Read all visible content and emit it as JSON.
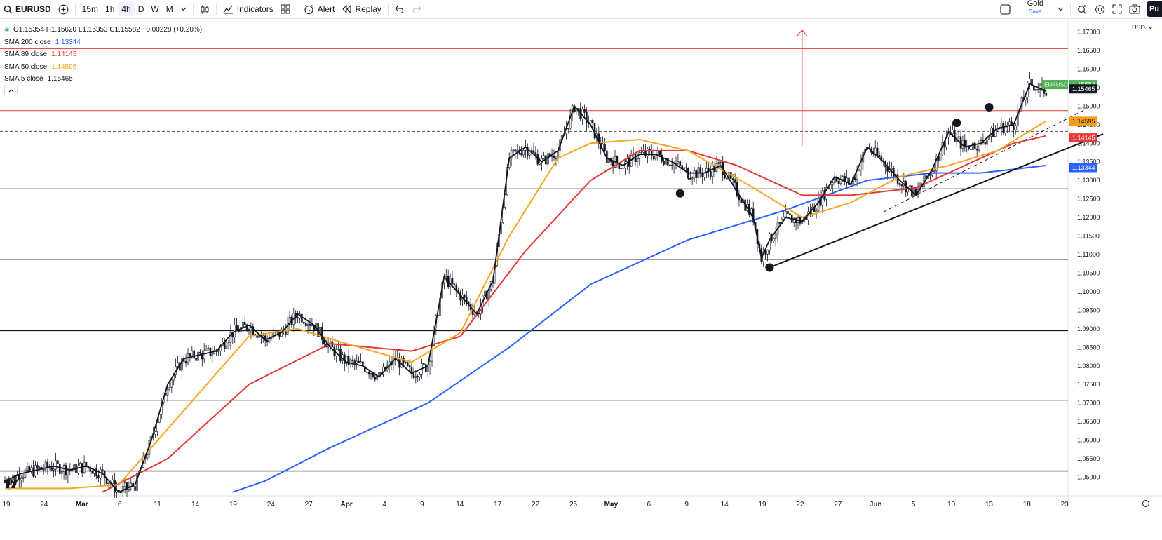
{
  "toolbar": {
    "symbol": "EURUSD",
    "timeframes": [
      {
        "label": "15m",
        "active": false
      },
      {
        "label": "1h",
        "active": false
      },
      {
        "label": "4h",
        "active": true
      },
      {
        "label": "D",
        "active": false
      },
      {
        "label": "W",
        "active": false
      },
      {
        "label": "M",
        "active": false
      }
    ],
    "indicators_label": "Indicators",
    "alert_label": "Alert",
    "replay_label": "Replay",
    "layout_name": "Gold",
    "layout_save": "Save",
    "publish_label": "Pu"
  },
  "legend": {
    "ohlc": "O1.15354 H1.15620 L1.15353 C1.15582 +0.00228 (+0.20%)",
    "indicators": [
      {
        "name": "SMA 200 close",
        "value": "1.13344",
        "color": "#2962ff"
      },
      {
        "name": "SMA 89 close",
        "value": "1.14145",
        "color": "#e53935"
      },
      {
        "name": "SMA 50 close",
        "value": "1.14595",
        "color": "#f5a623"
      },
      {
        "name": "SMA 5 close",
        "value": "1.15465",
        "color": "#131722"
      }
    ]
  },
  "currency": "USD",
  "price_axis": {
    "min": 1.045,
    "max": 1.1735,
    "ticks": [
      "1.17000",
      "1.16500",
      "1.16000",
      "1.15500",
      "1.15000",
      "1.14500",
      "1.14000",
      "1.13500",
      "1.13000",
      "1.12500",
      "1.12000",
      "1.11500",
      "1.11000",
      "1.10500",
      "1.10000",
      "1.09500",
      "1.09000",
      "1.08500",
      "1.08000",
      "1.07500",
      "1.07000",
      "1.06500",
      "1.06000",
      "1.05500",
      "1.05000"
    ],
    "badges": [
      {
        "label": "EURUSD",
        "value": "1.15582",
        "price": 1.15582,
        "bg": "#4caf50",
        "fg": "#ffffff"
      },
      {
        "value": "1.15465",
        "price": 1.15465,
        "bg": "#131722",
        "fg": "#ffffff"
      },
      {
        "value": "1.14595",
        "price": 1.14595,
        "bg": "#f59d1a",
        "fg": "#131722"
      },
      {
        "value": "1.14145",
        "price": 1.14145,
        "bg": "#e53935",
        "fg": "#ffffff"
      },
      {
        "value": "1.13344",
        "price": 1.13344,
        "bg": "#2962ff",
        "fg": "#ffffff"
      }
    ]
  },
  "time_axis": {
    "labels": [
      "19",
      "24",
      "Mar",
      "6",
      "11",
      "14",
      "19",
      "24",
      "27",
      "Apr",
      "4",
      "9",
      "14",
      "17",
      "22",
      "25",
      "May",
      "6",
      "9",
      "14",
      "19",
      "22",
      "27",
      "Jun",
      "5",
      "10",
      "13",
      "18",
      "23"
    ],
    "bold": [
      "Mar",
      "Apr",
      "May",
      "Jun"
    ]
  },
  "chart_data": {
    "type": "candlestick",
    "symbol": "EURUSD",
    "interval": "4h",
    "ohlc_last": {
      "open": 1.15354,
      "high": 1.1562,
      "low": 1.15353,
      "close": 1.15582,
      "change": 0.00228,
      "change_pct": 0.2
    },
    "close_series": [
      [
        0,
        1.049
      ],
      [
        2,
        1.051
      ],
      [
        4,
        1.052
      ],
      [
        6,
        1.053
      ],
      [
        8,
        1.052
      ],
      [
        10,
        1.053
      ],
      [
        12,
        1.051
      ],
      [
        14,
        1.046
      ],
      [
        16,
        1.048
      ],
      [
        18,
        1.06
      ],
      [
        20,
        1.075
      ],
      [
        22,
        1.082
      ],
      [
        24,
        1.083
      ],
      [
        26,
        1.084
      ],
      [
        28,
        1.089
      ],
      [
        30,
        1.091
      ],
      [
        32,
        1.087
      ],
      [
        34,
        1.089
      ],
      [
        36,
        1.094
      ],
      [
        38,
        1.091
      ],
      [
        40,
        1.085
      ],
      [
        42,
        1.081
      ],
      [
        44,
        1.08
      ],
      [
        46,
        1.077
      ],
      [
        48,
        1.082
      ],
      [
        50,
        1.078
      ],
      [
        52,
        1.08
      ],
      [
        54,
        1.104
      ],
      [
        56,
        1.099
      ],
      [
        58,
        1.094
      ],
      [
        60,
        1.103
      ],
      [
        62,
        1.136
      ],
      [
        64,
        1.139
      ],
      [
        66,
        1.135
      ],
      [
        68,
        1.138
      ],
      [
        70,
        1.15
      ],
      [
        72,
        1.145
      ],
      [
        74,
        1.136
      ],
      [
        76,
        1.134
      ],
      [
        78,
        1.137
      ],
      [
        80,
        1.137
      ],
      [
        82,
        1.135
      ],
      [
        84,
        1.132
      ],
      [
        86,
        1.132
      ],
      [
        88,
        1.134
      ],
      [
        90,
        1.127
      ],
      [
        92,
        1.12
      ],
      [
        93,
        1.109
      ],
      [
        94,
        1.114
      ],
      [
        96,
        1.12
      ],
      [
        98,
        1.119
      ],
      [
        100,
        1.124
      ],
      [
        102,
        1.131
      ],
      [
        104,
        1.129
      ],
      [
        106,
        1.139
      ],
      [
        108,
        1.135
      ],
      [
        110,
        1.13
      ],
      [
        112,
        1.126
      ],
      [
        114,
        1.133
      ],
      [
        116,
        1.143
      ],
      [
        118,
        1.139
      ],
      [
        120,
        1.14
      ],
      [
        122,
        1.144
      ],
      [
        124,
        1.145
      ],
      [
        126,
        1.156
      ],
      [
        128,
        1.154
      ]
    ],
    "sma": [
      {
        "name": "SMA 200 close",
        "color": "#2962ff",
        "points": [
          [
            28,
            1.046
          ],
          [
            32,
            1.049
          ],
          [
            40,
            1.058
          ],
          [
            52,
            1.07
          ],
          [
            62,
            1.085
          ],
          [
            72,
            1.102
          ],
          [
            84,
            1.114
          ],
          [
            96,
            1.122
          ],
          [
            106,
            1.13
          ],
          [
            114,
            1.132
          ],
          [
            120,
            1.132
          ],
          [
            128,
            1.134
          ]
        ]
      },
      {
        "name": "SMA 89 close",
        "color": "#e53935",
        "points": [
          [
            12,
            1.046
          ],
          [
            20,
            1.055
          ],
          [
            30,
            1.075
          ],
          [
            40,
            1.086
          ],
          [
            50,
            1.084
          ],
          [
            56,
            1.088
          ],
          [
            64,
            1.111
          ],
          [
            72,
            1.13
          ],
          [
            78,
            1.138
          ],
          [
            84,
            1.138
          ],
          [
            90,
            1.134
          ],
          [
            98,
            1.126
          ],
          [
            104,
            1.126
          ],
          [
            112,
            1.128
          ],
          [
            118,
            1.134
          ],
          [
            124,
            1.14
          ],
          [
            128,
            1.142
          ]
        ]
      },
      {
        "name": "SMA 50 close",
        "color": "#f5a623",
        "points": [
          [
            0,
            1.047
          ],
          [
            8,
            1.047
          ],
          [
            14,
            1.048
          ],
          [
            22,
            1.068
          ],
          [
            30,
            1.088
          ],
          [
            36,
            1.09
          ],
          [
            42,
            1.086
          ],
          [
            50,
            1.081
          ],
          [
            56,
            1.089
          ],
          [
            62,
            1.115
          ],
          [
            68,
            1.136
          ],
          [
            72,
            1.14
          ],
          [
            78,
            1.141
          ],
          [
            84,
            1.138
          ],
          [
            92,
            1.128
          ],
          [
            98,
            1.12
          ],
          [
            104,
            1.124
          ],
          [
            110,
            1.131
          ],
          [
            116,
            1.134
          ],
          [
            122,
            1.138
          ],
          [
            128,
            1.146
          ]
        ]
      }
    ],
    "horizontal_levels": [
      {
        "price": 1.1655,
        "color": "#e53935"
      },
      {
        "price": 1.1488,
        "color": "#e53935"
      },
      {
        "price": 1.1432,
        "color": "#555555",
        "style": "dashed"
      },
      {
        "price": 1.1277,
        "color": "#131722"
      },
      {
        "price": 1.1086,
        "color": "#999999"
      },
      {
        "price": 1.0895,
        "color": "#131722"
      },
      {
        "price": 1.0707,
        "color": "#999999"
      },
      {
        "price": 1.0517,
        "color": "#131722"
      }
    ],
    "trendlines": [
      {
        "from": [
          94,
          1.1065
        ],
        "to": [
          135,
          1.1425
        ],
        "color": "#131722",
        "style": "solid"
      },
      {
        "from": [
          108,
          1.1215
        ],
        "to": [
          133,
          1.1493
        ],
        "color": "#131722",
        "style": "dashed"
      }
    ],
    "markers": [
      [
        83,
        1.1265
      ],
      [
        94,
        1.1065
      ],
      [
        117,
        1.1455
      ],
      [
        121,
        1.1497
      ]
    ],
    "arrow": {
      "x": 98,
      "from": 1.1393,
      "to": 1.1705,
      "color": "#e53935"
    }
  }
}
